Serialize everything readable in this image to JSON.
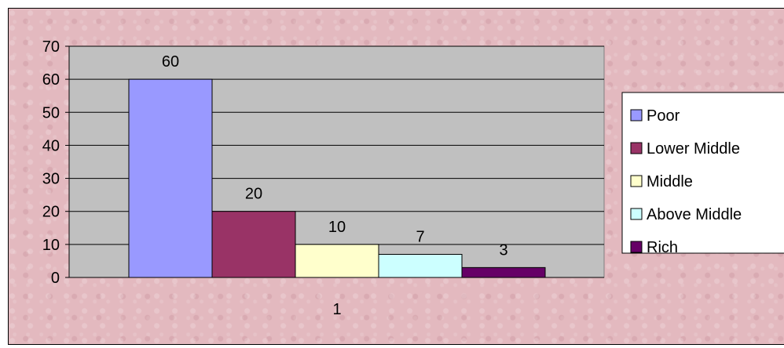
{
  "chart_data": {
    "type": "bar",
    "title": "",
    "xlabel": "",
    "ylabel": "",
    "categories": [
      "1"
    ],
    "series": [
      {
        "name": "Poor",
        "values": [
          60
        ],
        "color": "#9999ff"
      },
      {
        "name": "Lower Middle",
        "values": [
          20
        ],
        "color": "#993366"
      },
      {
        "name": "Middle",
        "values": [
          10
        ],
        "color": "#ffffcc"
      },
      {
        "name": "Above Middle",
        "values": [
          7
        ],
        "color": "#ccffff"
      },
      {
        "name": "Rich",
        "values": [
          3
        ],
        "color": "#660066"
      }
    ],
    "ylim": [
      0,
      70
    ],
    "yticks": [
      0,
      10,
      20,
      30,
      40,
      50,
      60,
      70
    ],
    "grid": true,
    "legend_position": "right",
    "data_labels": [
      "60",
      "20",
      "10",
      "7",
      "3"
    ],
    "plot_background": "#c0c0c0"
  }
}
